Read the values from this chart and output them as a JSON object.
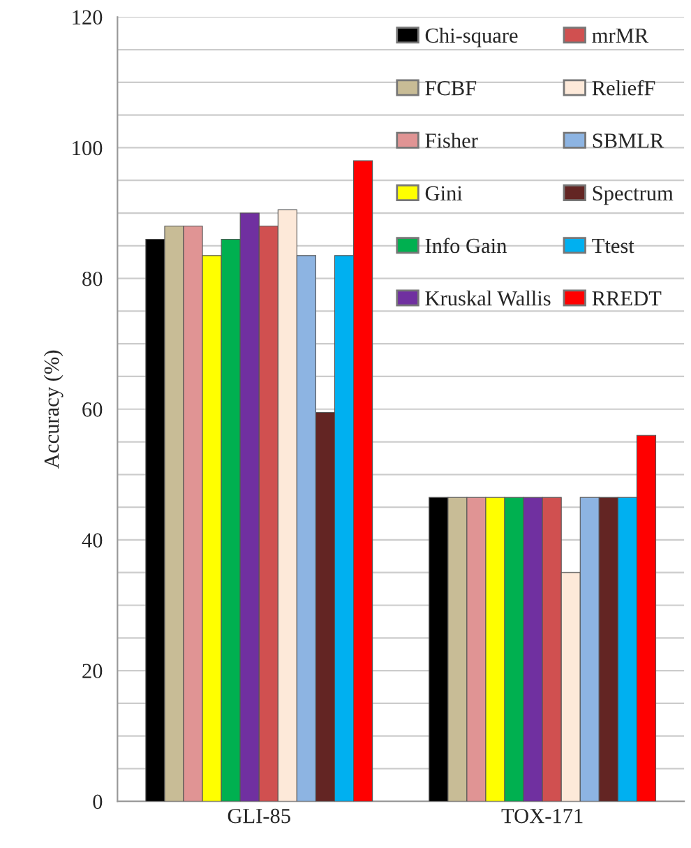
{
  "chart_data": {
    "type": "bar",
    "ylabel": "Accuracy (%)",
    "categories": [
      "GLI-85",
      "TOX-171"
    ],
    "series": [
      {
        "name": "Chi-square",
        "color": "#000000",
        "values": [
          86,
          46.5
        ]
      },
      {
        "name": "FCBF",
        "color": "#c8bc96",
        "values": [
          88,
          46.5
        ]
      },
      {
        "name": "Fisher",
        "color": "#e09494",
        "values": [
          88,
          46.5
        ]
      },
      {
        "name": "Gini",
        "color": "#ffff00",
        "values": [
          83.5,
          46.5
        ]
      },
      {
        "name": "Info Gain",
        "color": "#00b050",
        "values": [
          86,
          46.5
        ]
      },
      {
        "name": "Kruskal Wallis",
        "color": "#7030a0",
        "values": [
          90,
          46.5
        ]
      },
      {
        "name": "mrMR",
        "color": "#d05050",
        "values": [
          88,
          46.5
        ]
      },
      {
        "name": "ReliefF",
        "color": "#fde9d9",
        "values": [
          90.5,
          35
        ]
      },
      {
        "name": "SBMLR",
        "color": "#8db4e2",
        "values": [
          83.5,
          46.5
        ]
      },
      {
        "name": "Spectrum",
        "color": "#632523",
        "values": [
          59.5,
          46.5
        ]
      },
      {
        "name": "Ttest",
        "color": "#00b0f0",
        "values": [
          83.5,
          46.5
        ]
      },
      {
        "name": "RREDT",
        "color": "#ff0000",
        "values": [
          98,
          56
        ]
      }
    ],
    "ylim": [
      0,
      120
    ],
    "yticks": [
      0,
      {
        "value": 5,
        "label": null
      },
      {
        "value": 10,
        "label": null
      },
      {
        "value": 15,
        "label": null
      },
      20,
      {
        "value": 25,
        "label": null
      },
      {
        "value": 30,
        "label": null
      },
      {
        "value": 35,
        "label": null
      },
      40,
      {
        "value": 45,
        "label": null
      },
      {
        "value": 50,
        "label": null
      },
      {
        "value": 55,
        "label": null
      },
      60,
      {
        "value": 65,
        "label": null
      },
      {
        "value": 70,
        "label": null
      },
      {
        "value": 75,
        "label": null
      },
      80,
      {
        "value": 85,
        "label": null
      },
      {
        "value": 90,
        "label": null
      },
      {
        "value": 95,
        "label": null
      },
      100,
      {
        "value": 105,
        "label": null
      },
      {
        "value": 110,
        "label": null
      },
      {
        "value": 115,
        "label": null
      },
      120
    ],
    "grid": "y",
    "legend": "top right"
  }
}
